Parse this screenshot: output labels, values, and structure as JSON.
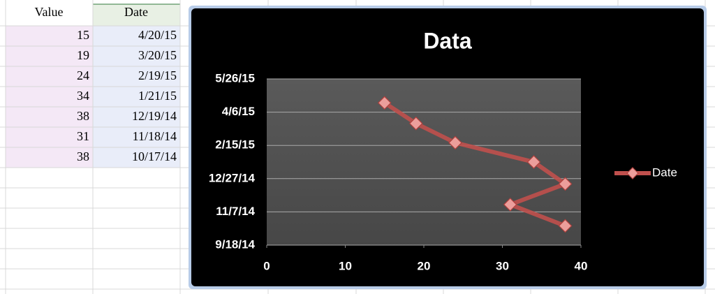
{
  "table": {
    "header": [
      "Value",
      "Date"
    ],
    "rows": [
      [
        15,
        "4/20/15"
      ],
      [
        19,
        "3/20/15"
      ],
      [
        24,
        "2/19/15"
      ],
      [
        34,
        "1/21/15"
      ],
      [
        38,
        "12/19/14"
      ],
      [
        31,
        "11/18/14"
      ],
      [
        38,
        "10/17/14"
      ]
    ]
  },
  "chart_data": {
    "type": "line",
    "title": "Data",
    "x": [
      15,
      19,
      24,
      34,
      38,
      31,
      38
    ],
    "series": [
      {
        "name": "Date",
        "color": "#c0504d",
        "values": [
          "2015-04-20",
          "2015-03-20",
          "2015-02-19",
          "2015-01-21",
          "2014-12-19",
          "2014-11-18",
          "2014-10-17"
        ]
      }
    ],
    "xlim": [
      0,
      40
    ],
    "xticks": [
      0,
      10,
      20,
      30,
      40
    ],
    "ylim": [
      "2014-09-18",
      "2015-05-26"
    ],
    "yticks": [
      {
        "value": "2014-09-18",
        "label": "9/18/14"
      },
      {
        "value": "2014-11-07",
        "label": "11/7/14"
      },
      {
        "value": "2014-12-27",
        "label": "12/27/14"
      },
      {
        "value": "2015-02-15",
        "label": "2/15/15"
      },
      {
        "value": "2015-04-06",
        "label": "4/6/15"
      },
      {
        "value": "2015-05-26",
        "label": "5/26/15"
      }
    ],
    "grid": true,
    "legend": "right"
  }
}
